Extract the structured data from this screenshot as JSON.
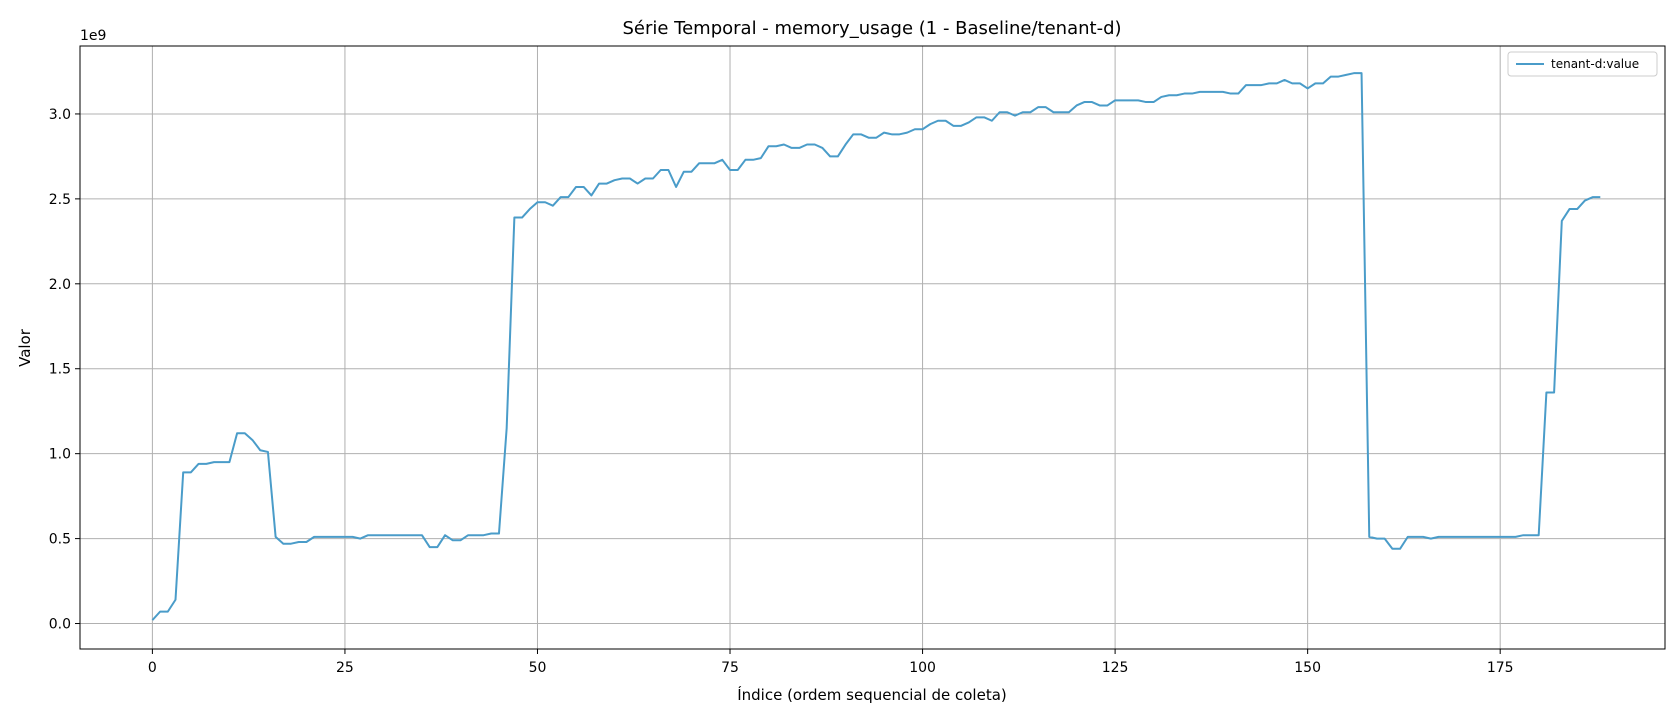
{
  "chart_data": {
    "type": "line",
    "title": "Série Temporal - memory_usage (1 - Baseline/tenant-d)",
    "xlabel": "Índice (ordem sequencial de coleta)",
    "ylabel": "Valor",
    "y_offset_label": "1e9",
    "xlim": [
      -9.4,
      196.4
    ],
    "ylim": [
      -0.15,
      3.4
    ],
    "x_ticks": [
      0,
      25,
      50,
      75,
      100,
      125,
      150,
      175
    ],
    "x_tick_labels": [
      "0",
      "25",
      "50",
      "75",
      "100",
      "125",
      "150",
      "175"
    ],
    "y_ticks": [
      0.0,
      0.5,
      1.0,
      1.5,
      2.0,
      2.5,
      3.0
    ],
    "y_tick_labels": [
      "0.0",
      "0.5",
      "1.0",
      "1.5",
      "2.0",
      "2.5",
      "3.0"
    ],
    "grid": true,
    "legend_position": "top-right",
    "series": [
      {
        "name": "tenant-d:value",
        "color": "#4a9cc9",
        "x_start": 0,
        "values": [
          0.02,
          0.07,
          0.07,
          0.14,
          0.89,
          0.89,
          0.94,
          0.94,
          0.95,
          0.95,
          0.95,
          1.12,
          1.12,
          1.08,
          1.02,
          1.01,
          0.51,
          0.47,
          0.47,
          0.48,
          0.48,
          0.51,
          0.51,
          0.51,
          0.51,
          0.51,
          0.51,
          0.5,
          0.52,
          0.52,
          0.52,
          0.52,
          0.52,
          0.52,
          0.52,
          0.52,
          0.45,
          0.45,
          0.52,
          0.49,
          0.49,
          0.52,
          0.52,
          0.52,
          0.53,
          0.53,
          1.15,
          2.39,
          2.39,
          2.44,
          2.48,
          2.48,
          2.46,
          2.51,
          2.51,
          2.57,
          2.57,
          2.52,
          2.59,
          2.59,
          2.61,
          2.62,
          2.62,
          2.59,
          2.62,
          2.62,
          2.67,
          2.67,
          2.57,
          2.66,
          2.66,
          2.71,
          2.71,
          2.71,
          2.73,
          2.67,
          2.67,
          2.73,
          2.73,
          2.74,
          2.81,
          2.81,
          2.82,
          2.8,
          2.8,
          2.82,
          2.82,
          2.8,
          2.75,
          2.75,
          2.82,
          2.88,
          2.88,
          2.86,
          2.86,
          2.89,
          2.88,
          2.88,
          2.89,
          2.91,
          2.91,
          2.94,
          2.96,
          2.96,
          2.93,
          2.93,
          2.95,
          2.98,
          2.98,
          2.96,
          3.01,
          3.01,
          2.99,
          3.01,
          3.01,
          3.04,
          3.04,
          3.01,
          3.01,
          3.01,
          3.05,
          3.07,
          3.07,
          3.05,
          3.05,
          3.08,
          3.08,
          3.08,
          3.08,
          3.07,
          3.07,
          3.1,
          3.11,
          3.11,
          3.12,
          3.12,
          3.13,
          3.13,
          3.13,
          3.13,
          3.12,
          3.12,
          3.17,
          3.17,
          3.17,
          3.18,
          3.18,
          3.2,
          3.18,
          3.18,
          3.15,
          3.18,
          3.18,
          3.22,
          3.22,
          3.23,
          3.24,
          3.24,
          0.51,
          0.5,
          0.5,
          0.44,
          0.44,
          0.51,
          0.51,
          0.51,
          0.5,
          0.51,
          0.51,
          0.51,
          0.51,
          0.51,
          0.51,
          0.51,
          0.51,
          0.51,
          0.51,
          0.51,
          0.52,
          0.52,
          0.52,
          1.36,
          1.36,
          2.37,
          2.44,
          2.44,
          2.49,
          2.51,
          2.51
        ]
      }
    ]
  }
}
